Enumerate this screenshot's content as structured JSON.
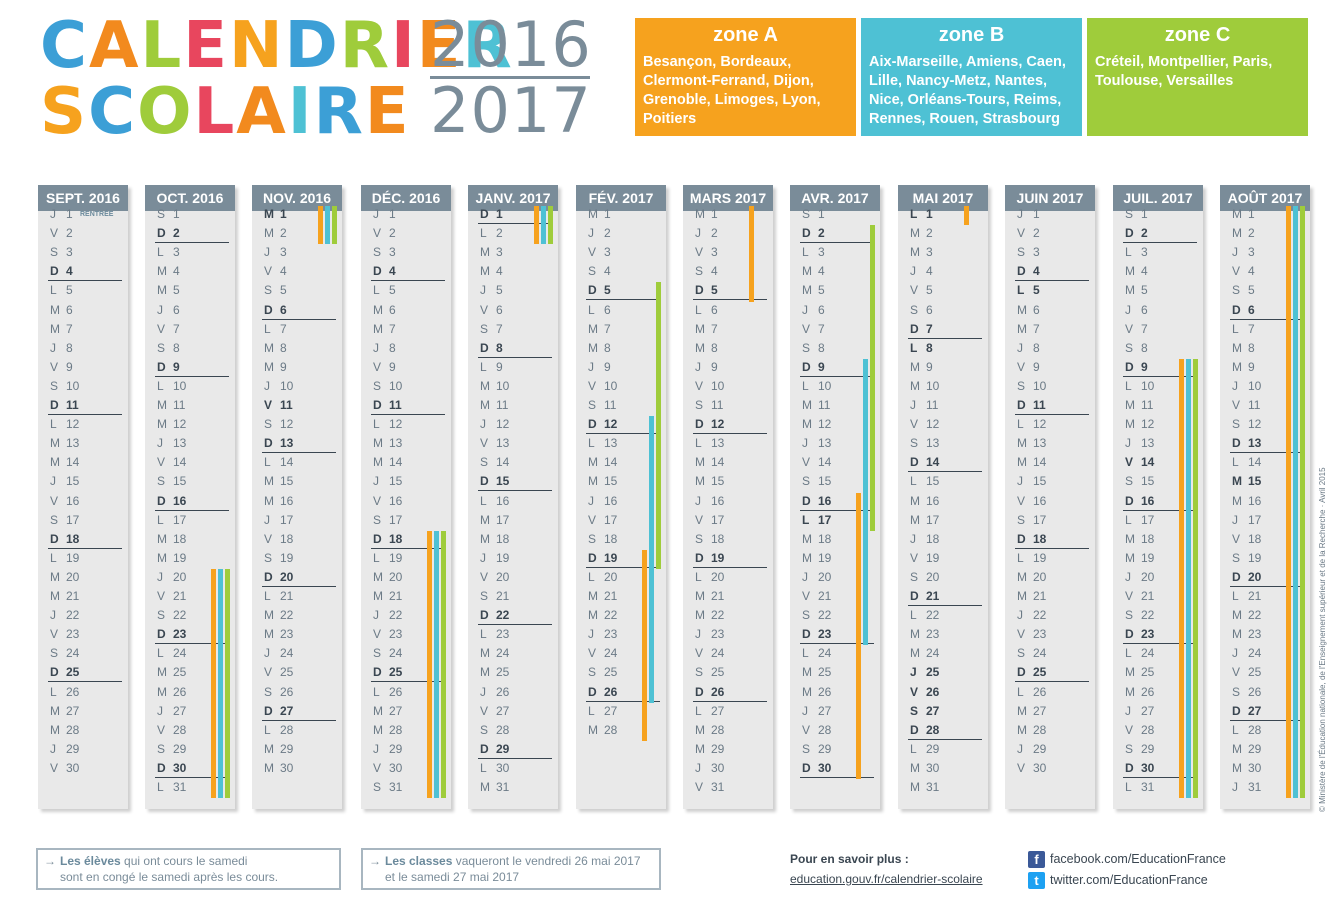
{
  "title": {
    "line1": "CALENDRIER",
    "line2": "SCOLAIRE",
    "year1": "2016",
    "year2": "2017",
    "letter_colors": [
      "#3c9fd6",
      "#f28a1e",
      "#9fcc3b",
      "#e8465e",
      "#f6a21e",
      "#3c9fd6",
      "#9fcc3b",
      "#e8465e",
      "#f28a1e",
      "#4ec1d4"
    ]
  },
  "zones": [
    {
      "name": "zone A",
      "cities": "Besançon, Bordeaux, Clermont-Ferrand, Dijon, Grenoble, Limoges, Lyon, Poitiers",
      "color": "#f6a21e"
    },
    {
      "name": "zone B",
      "cities": "Aix-Marseille, Amiens, Caen, Lille, Nancy-Metz, Nantes, Nice, Orléans-Tours, Reims, Rennes, Rouen, Strasbourg",
      "color": "#4ec1d4"
    },
    {
      "name": "zone C",
      "cities": "Créteil, Montpellier, Paris, Toulouse, Versailles",
      "color": "#9fcc3b"
    }
  ],
  "day_letters": [
    "L",
    "M",
    "M",
    "J",
    "V",
    "S",
    "D"
  ],
  "months": [
    {
      "label": "SEPT. 2016",
      "days": 30,
      "start_weekday": 3,
      "note": {
        "day": 1,
        "text": "RENTRÉE"
      },
      "bold_extra": [],
      "holidays": []
    },
    {
      "label": "OCT. 2016",
      "days": 31,
      "start_weekday": 5,
      "bold_extra": [],
      "holidays": [
        {
          "zones": [
            "A",
            "B",
            "C"
          ],
          "from": 20,
          "to": 31
        }
      ]
    },
    {
      "label": "NOV. 2016",
      "days": 30,
      "start_weekday": 1,
      "bold_extra": [
        1,
        11
      ],
      "holidays": [
        {
          "zones": [
            "A",
            "B",
            "C"
          ],
          "from": 1,
          "to": 2
        }
      ]
    },
    {
      "label": "DÉC. 2016",
      "days": 31,
      "start_weekday": 3,
      "bold_extra": [],
      "holidays": [
        {
          "zones": [
            "A",
            "B",
            "C"
          ],
          "from": 18,
          "to": 31
        }
      ]
    },
    {
      "label": "JANV. 2017",
      "days": 31,
      "start_weekday": 6,
      "bold_extra": [],
      "holidays": [
        {
          "zones": [
            "A",
            "B",
            "C"
          ],
          "from": 1,
          "to": 2
        }
      ]
    },
    {
      "label": "FÉV. 2017",
      "days": 28,
      "start_weekday": 2,
      "bold_extra": [],
      "holidays": [
        {
          "zones": [
            "A"
          ],
          "from": 19,
          "to": 28
        },
        {
          "zones": [
            "B"
          ],
          "from": 12,
          "to": 26
        },
        {
          "zones": [
            "C"
          ],
          "from": 5,
          "to": 19
        }
      ]
    },
    {
      "label": "MARS 2017",
      "days": 31,
      "start_weekday": 2,
      "bold_extra": [],
      "holidays": [
        {
          "zones": [
            "A"
          ],
          "from": 1,
          "to": 5
        }
      ]
    },
    {
      "label": "AVR. 2017",
      "days": 30,
      "start_weekday": 5,
      "bold_extra": [
        17
      ],
      "holidays": [
        {
          "zones": [
            "A"
          ],
          "from": 16,
          "to": 30
        },
        {
          "zones": [
            "B"
          ],
          "from": 9,
          "to": 23
        },
        {
          "zones": [
            "C"
          ],
          "from": 2,
          "to": 17
        }
      ]
    },
    {
      "label": "MAI 2017",
      "days": 31,
      "start_weekday": 0,
      "bold_extra": [
        1,
        8,
        25,
        26,
        27
      ],
      "holidays": [
        {
          "zones": [
            "A"
          ],
          "from": 1,
          "to": 1
        }
      ]
    },
    {
      "label": "JUIN 2017",
      "days": 30,
      "start_weekday": 3,
      "bold_extra": [
        5
      ],
      "holidays": []
    },
    {
      "label": "JUIL. 2017",
      "days": 31,
      "start_weekday": 5,
      "bold_extra": [
        14
      ],
      "holidays": [
        {
          "zones": [
            "A",
            "B",
            "C"
          ],
          "from": 9,
          "to": 31
        }
      ]
    },
    {
      "label": "AOÛT 2017",
      "days": 31,
      "start_weekday": 1,
      "bold_extra": [
        15
      ],
      "holidays": [
        {
          "zones": [
            "A",
            "B",
            "C"
          ],
          "from": 1,
          "to": 31
        }
      ]
    }
  ],
  "info1": {
    "bold": "Les élèves",
    "rest": " qui ont cours le samedi",
    "line2": "sont en congé le samedi après les cours."
  },
  "info2": {
    "bold": "Les classes",
    "rest": " vaqueront le vendredi 26 mai 2017",
    "line2": "et le samedi 27 mai 2017"
  },
  "more": {
    "label": "Pour en savoir plus :",
    "url": "education.gouv.fr/calendrier-scolaire"
  },
  "social": {
    "facebook": "facebook.com/EducationFrance",
    "twitter": "twitter.com/EducationFrance",
    "fb_icon": "f",
    "tw_icon": "t"
  },
  "copyright": "© Ministère de l'Éducation nationale, de l'Enseignement supérieur et de la Recherche · Avril 2015"
}
